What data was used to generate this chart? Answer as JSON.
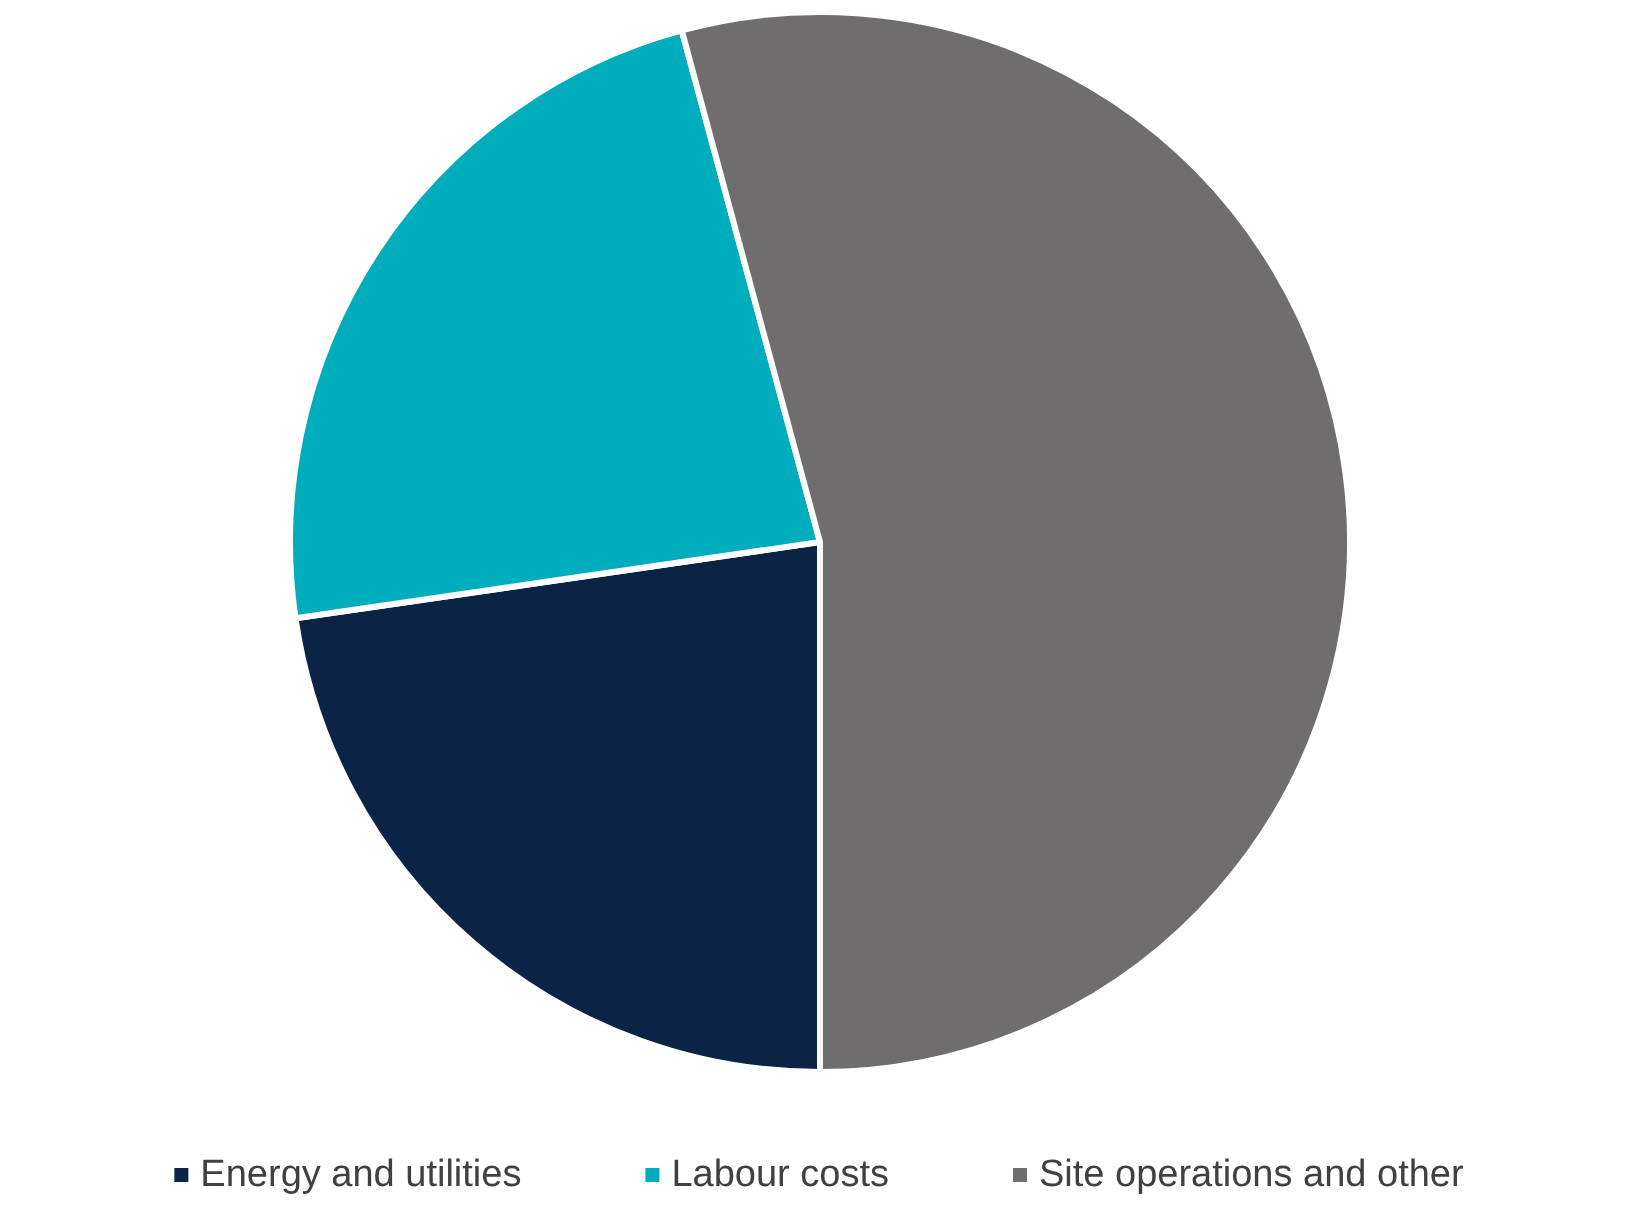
{
  "chart_data": {
    "type": "pie",
    "categories": [
      "Energy and utilities",
      "Labour costs",
      "Site operations and other"
    ],
    "values": [
      22.7,
      23.1,
      54.2
    ],
    "colors": [
      "#0b2345",
      "#00adbd",
      "#6f6d6e"
    ],
    "legend": "bottom"
  }
}
